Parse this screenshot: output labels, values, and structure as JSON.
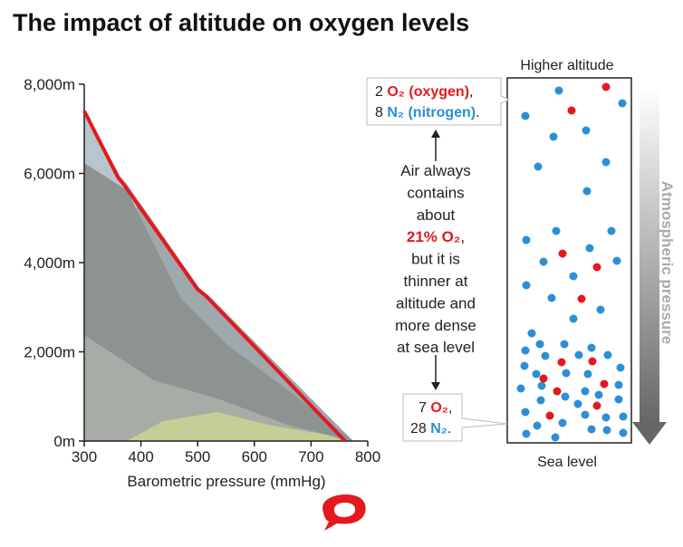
{
  "chart_data": {
    "type": "line",
    "title": "The impact of altitude on oxygen levels",
    "xlabel": "Barometric pressure (mmHg)",
    "x": [
      300,
      360,
      370,
      500,
      515,
      760
    ],
    "values": [
      7400,
      5900,
      5750,
      3400,
      3250,
      0
    ],
    "color": "#e3191f",
    "xlim": [
      300,
      800
    ],
    "ylim": [
      0,
      8000
    ],
    "xticks": [
      300,
      400,
      500,
      600,
      700,
      800
    ],
    "yticks": [
      {
        "value": 0,
        "label": "0m"
      },
      {
        "value": 2000,
        "label": "2,000m"
      },
      {
        "value": 4000,
        "label": "4,000m"
      },
      {
        "value": 6000,
        "label": "6,000m"
      },
      {
        "value": 8000,
        "label": "8,000m"
      }
    ]
  },
  "panel": {
    "top_label": "Higher altitude",
    "bottom_label": "Sea level",
    "arrow_label": "Atmospheric pressure",
    "top_callout": [
      {
        "count": "2",
        "formula": "O₂ (oxygen)",
        "end": ","
      },
      {
        "count": "8",
        "formula": "N₂ (nitrogen)",
        "end": "."
      }
    ],
    "note": [
      "Air always",
      "contains",
      "about",
      "21% O₂",
      ",",
      "but it is",
      "thinner at",
      "altitude and",
      "more dense",
      "at sea level"
    ],
    "bottom_callout": [
      {
        "count": "7",
        "formula": "O₂",
        "end": ","
      },
      {
        "count": "28",
        "formula": "N₂",
        "end": "."
      }
    ]
  }
}
